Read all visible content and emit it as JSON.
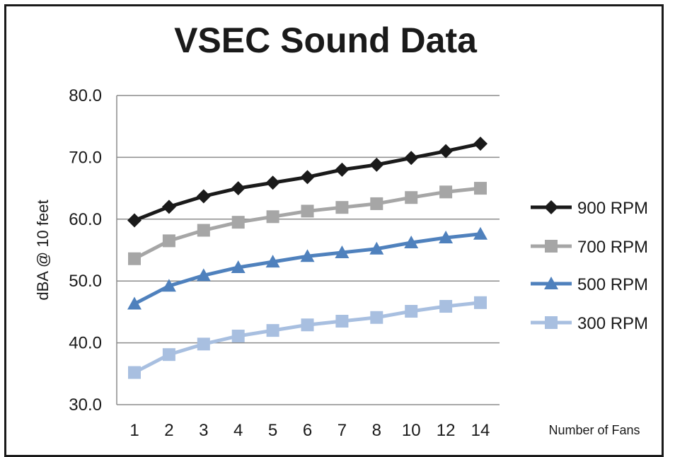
{
  "chart_data": {
    "type": "line",
    "title": "VSEC Sound Data",
    "xlabel": "Number of Fans",
    "ylabel": "dBA @ 10 feet",
    "categories": [
      "1",
      "2",
      "3",
      "4",
      "5",
      "6",
      "7",
      "8",
      "10",
      "12",
      "14"
    ],
    "ylim": [
      30.0,
      80.0
    ],
    "yticks": [
      "30.0",
      "40.0",
      "50.0",
      "60.0",
      "70.0",
      "80.0"
    ],
    "grid": true,
    "legend_position": "right",
    "series": [
      {
        "name": "900 RPM",
        "color": "#1a1a1a",
        "marker": "diamond",
        "values": [
          59.8,
          62.0,
          63.7,
          65.0,
          65.9,
          66.8,
          68.0,
          68.8,
          69.9,
          71.0,
          72.2
        ]
      },
      {
        "name": "700 RPM",
        "color": "#a6a6a6",
        "marker": "square",
        "values": [
          53.6,
          56.5,
          58.2,
          59.5,
          60.4,
          61.3,
          61.9,
          62.5,
          63.5,
          64.4,
          65.0
        ]
      },
      {
        "name": "500  RPM",
        "color": "#4f81bd",
        "marker": "triangle",
        "values": [
          46.3,
          49.2,
          50.9,
          52.2,
          53.1,
          54.0,
          54.6,
          55.2,
          56.2,
          57.0,
          57.6
        ]
      },
      {
        "name": "300 RPM",
        "color": "#a8bfe0",
        "marker": "square",
        "values": [
          35.2,
          38.1,
          39.8,
          41.1,
          42.0,
          42.9,
          43.5,
          44.1,
          45.1,
          45.9,
          46.5
        ]
      }
    ]
  }
}
